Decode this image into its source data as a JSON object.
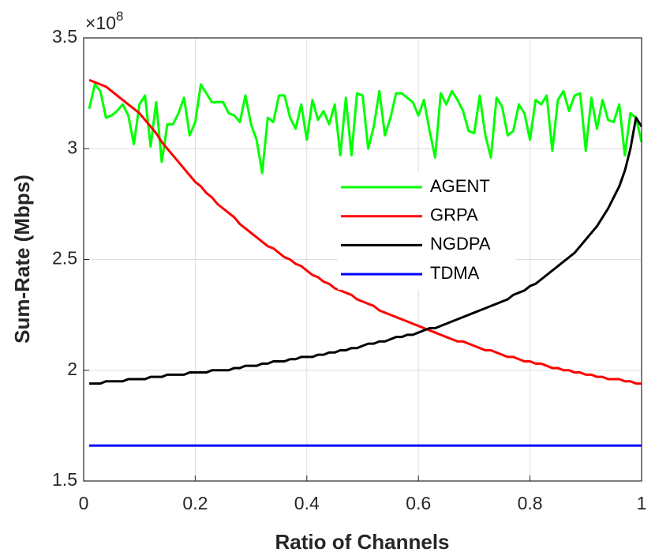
{
  "chart_data": {
    "type": "line",
    "xlabel": "Ratio of Channels",
    "ylabel": "Sum-Rate (Mbps)",
    "y_multiplier_base": "×10",
    "y_multiplier_exponent": "8",
    "xlim": [
      0,
      1
    ],
    "ylim": [
      1.5,
      3.5
    ],
    "xticks": [
      0,
      0.2,
      0.4,
      0.6,
      0.8,
      1
    ],
    "yticks": [
      1.5,
      2,
      2.5,
      3,
      3.5
    ],
    "grid": true,
    "legend": "center-right",
    "x": [
      0.01,
      0.02,
      0.03,
      0.04,
      0.05,
      0.06,
      0.07,
      0.08,
      0.09,
      0.1,
      0.11,
      0.12,
      0.13,
      0.14,
      0.15,
      0.16,
      0.17,
      0.18,
      0.19,
      0.2,
      0.21,
      0.22,
      0.23,
      0.24,
      0.25,
      0.26,
      0.27,
      0.28,
      0.29,
      0.3,
      0.31,
      0.32,
      0.33,
      0.34,
      0.35,
      0.36,
      0.37,
      0.38,
      0.39,
      0.4,
      0.41,
      0.42,
      0.43,
      0.44,
      0.45,
      0.46,
      0.47,
      0.48,
      0.49,
      0.5,
      0.51,
      0.52,
      0.53,
      0.54,
      0.55,
      0.56,
      0.57,
      0.58,
      0.59,
      0.6,
      0.61,
      0.62,
      0.63,
      0.64,
      0.65,
      0.66,
      0.67,
      0.68,
      0.69,
      0.7,
      0.71,
      0.72,
      0.73,
      0.74,
      0.75,
      0.76,
      0.77,
      0.78,
      0.79,
      0.8,
      0.81,
      0.82,
      0.83,
      0.84,
      0.85,
      0.86,
      0.87,
      0.88,
      0.89,
      0.9,
      0.91,
      0.92,
      0.93,
      0.94,
      0.95,
      0.96,
      0.97,
      0.98,
      0.99,
      1
    ],
    "series": [
      {
        "name": "AGENT",
        "color": "#00ff00",
        "values": [
          3.18,
          3.29,
          3.26,
          3.14,
          3.15,
          3.17,
          3.2,
          3.15,
          3.02,
          3.2,
          3.24,
          3.01,
          3.21,
          2.94,
          3.11,
          3.11,
          3.16,
          3.23,
          3.06,
          3.12,
          3.29,
          3.25,
          3.21,
          3.21,
          3.21,
          3.16,
          3.15,
          3.12,
          3.24,
          3.11,
          3.04,
          2.89,
          3.14,
          3.12,
          3.24,
          3.24,
          3.14,
          3.09,
          3.2,
          3.04,
          3.22,
          3.13,
          3.17,
          3.11,
          3.2,
          2.97,
          3.23,
          2.97,
          3.25,
          3.24,
          3.0,
          3.1,
          3.26,
          3.06,
          3.14,
          3.25,
          3.25,
          3.23,
          3.21,
          3.15,
          3.22,
          3.08,
          2.96,
          3.25,
          3.2,
          3.26,
          3.22,
          3.17,
          3.08,
          3.07,
          3.24,
          3.06,
          2.96,
          3.23,
          3.19,
          3.06,
          3.08,
          3.2,
          3.16,
          3.04,
          3.22,
          3.2,
          3.24,
          2.99,
          3.22,
          3.26,
          3.17,
          3.24,
          3.25,
          2.99,
          3.23,
          3.09,
          3.22,
          3.13,
          3.12,
          3.2,
          2.97,
          3.16,
          3.14,
          3.03
        ]
      },
      {
        "name": "GRPA",
        "color": "#ff0000",
        "values": [
          3.31,
          3.3,
          3.29,
          3.28,
          3.26,
          3.24,
          3.22,
          3.2,
          3.18,
          3.16,
          3.13,
          3.1,
          3.07,
          3.03,
          3.0,
          2.97,
          2.94,
          2.91,
          2.88,
          2.85,
          2.83,
          2.8,
          2.78,
          2.75,
          2.73,
          2.71,
          2.69,
          2.66,
          2.64,
          2.62,
          2.6,
          2.58,
          2.56,
          2.55,
          2.53,
          2.51,
          2.5,
          2.48,
          2.47,
          2.45,
          2.43,
          2.42,
          2.4,
          2.39,
          2.37,
          2.36,
          2.35,
          2.34,
          2.32,
          2.31,
          2.3,
          2.29,
          2.27,
          2.26,
          2.25,
          2.24,
          2.23,
          2.22,
          2.21,
          2.2,
          2.19,
          2.18,
          2.17,
          2.16,
          2.15,
          2.14,
          2.13,
          2.13,
          2.12,
          2.11,
          2.1,
          2.09,
          2.09,
          2.08,
          2.07,
          2.06,
          2.06,
          2.05,
          2.04,
          2.04,
          2.03,
          2.03,
          2.02,
          2.01,
          2.01,
          2.0,
          2.0,
          1.99,
          1.99,
          1.98,
          1.98,
          1.97,
          1.97,
          1.96,
          1.96,
          1.96,
          1.95,
          1.95,
          1.94,
          1.94
        ]
      },
      {
        "name": "NGDPA",
        "color": "#000000",
        "values": [
          1.94,
          1.94,
          1.94,
          1.95,
          1.95,
          1.95,
          1.95,
          1.96,
          1.96,
          1.96,
          1.96,
          1.97,
          1.97,
          1.97,
          1.98,
          1.98,
          1.98,
          1.98,
          1.99,
          1.99,
          1.99,
          1.99,
          2.0,
          2.0,
          2.0,
          2.0,
          2.01,
          2.01,
          2.02,
          2.02,
          2.02,
          2.03,
          2.03,
          2.04,
          2.04,
          2.04,
          2.05,
          2.05,
          2.06,
          2.06,
          2.06,
          2.07,
          2.07,
          2.08,
          2.08,
          2.09,
          2.09,
          2.1,
          2.1,
          2.11,
          2.12,
          2.12,
          2.13,
          2.13,
          2.14,
          2.15,
          2.15,
          2.16,
          2.16,
          2.17,
          2.18,
          2.19,
          2.19,
          2.2,
          2.21,
          2.22,
          2.23,
          2.24,
          2.25,
          2.26,
          2.27,
          2.28,
          2.29,
          2.3,
          2.31,
          2.32,
          2.34,
          2.35,
          2.36,
          2.38,
          2.39,
          2.41,
          2.43,
          2.45,
          2.47,
          2.49,
          2.51,
          2.53,
          2.56,
          2.59,
          2.62,
          2.65,
          2.69,
          2.73,
          2.78,
          2.83,
          2.9,
          3.0,
          3.14,
          3.1
        ]
      },
      {
        "name": "TDMA",
        "color": "#0000ff",
        "values": [
          1.66,
          1.66,
          1.66,
          1.66,
          1.66,
          1.66,
          1.66,
          1.66,
          1.66,
          1.66,
          1.66,
          1.66,
          1.66,
          1.66,
          1.66,
          1.66,
          1.66,
          1.66,
          1.66,
          1.66,
          1.66,
          1.66,
          1.66,
          1.66,
          1.66,
          1.66,
          1.66,
          1.66,
          1.66,
          1.66,
          1.66,
          1.66,
          1.66,
          1.66,
          1.66,
          1.66,
          1.66,
          1.66,
          1.66,
          1.66,
          1.66,
          1.66,
          1.66,
          1.66,
          1.66,
          1.66,
          1.66,
          1.66,
          1.66,
          1.66,
          1.66,
          1.66,
          1.66,
          1.66,
          1.66,
          1.66,
          1.66,
          1.66,
          1.66,
          1.66,
          1.66,
          1.66,
          1.66,
          1.66,
          1.66,
          1.66,
          1.66,
          1.66,
          1.66,
          1.66,
          1.66,
          1.66,
          1.66,
          1.66,
          1.66,
          1.66,
          1.66,
          1.66,
          1.66,
          1.66,
          1.66,
          1.66,
          1.66,
          1.66,
          1.66,
          1.66,
          1.66,
          1.66,
          1.66,
          1.66,
          1.66,
          1.66,
          1.66,
          1.66,
          1.66,
          1.66,
          1.66,
          1.66,
          1.66,
          1.66
        ]
      }
    ]
  }
}
